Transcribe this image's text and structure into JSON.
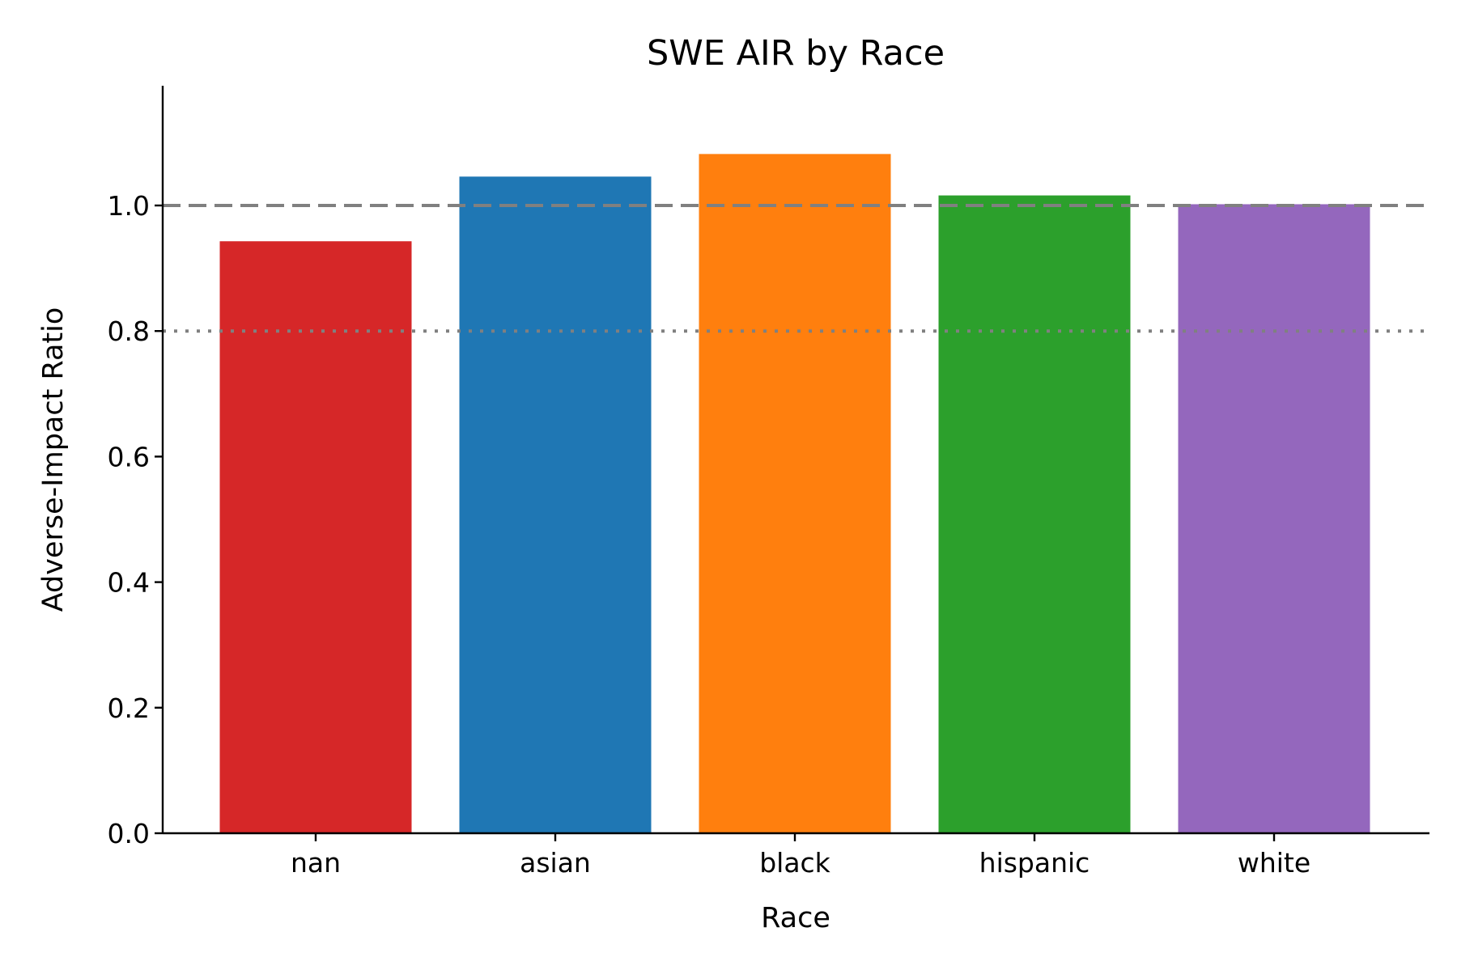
{
  "chart_data": {
    "type": "bar",
    "title": "SWE AIR by Race",
    "xlabel": "Race",
    "ylabel": "Adverse-Impact Ratio",
    "categories": [
      "nan",
      "asian",
      "black",
      "hispanic",
      "white"
    ],
    "values": [
      0.943,
      1.046,
      1.082,
      1.016,
      1.002
    ],
    "colors": [
      "#d62728",
      "#1f77b4",
      "#ff7f0e",
      "#2ca02c",
      "#9467bd"
    ],
    "ylim": [
      0,
      1.19
    ],
    "yticks": [
      0.0,
      0.2,
      0.4,
      0.6,
      0.8,
      1.0
    ],
    "ytick_labels": [
      "0.0",
      "0.2",
      "0.4",
      "0.6",
      "0.8",
      "1.0"
    ],
    "reference_lines": [
      {
        "value": 1.0,
        "style": "dashed",
        "color": "#808080"
      },
      {
        "value": 0.8,
        "style": "dotted",
        "color": "#808080"
      }
    ],
    "grid": false,
    "legend": "none"
  }
}
